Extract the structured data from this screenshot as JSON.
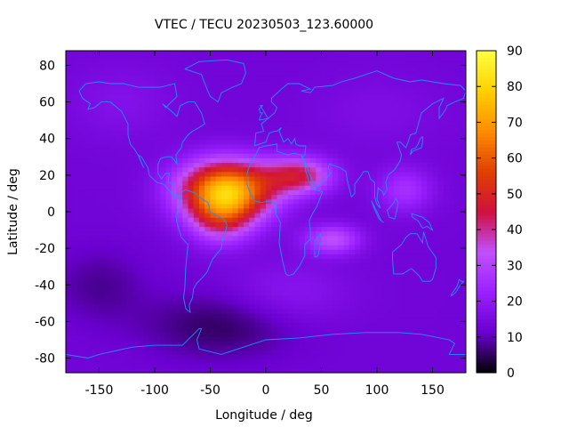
{
  "chart_data": {
    "type": "heatmap",
    "title": "VTEC / TECU 20230503_123.60000",
    "xlabel": "Longitude / deg",
    "ylabel": "Latitude / deg",
    "xlim": [
      -180,
      180
    ],
    "ylim": [
      -88,
      88
    ],
    "x_ticks": [
      "-150",
      "-100",
      "-50",
      "0",
      "50",
      "100",
      "150"
    ],
    "y_ticks": [
      "80",
      "60",
      "40",
      "20",
      "0",
      "-20",
      "-40",
      "-60",
      "-80"
    ],
    "colorbar": {
      "min": 0,
      "max": 90,
      "ticks": [
        "0",
        "10",
        "20",
        "30",
        "40",
        "50",
        "60",
        "70",
        "80",
        "90"
      ],
      "stops": [
        "#000000",
        "#6a00d0",
        "#9a20ff",
        "#c050ff",
        "#d01040",
        "#e04000",
        "#ff8c00",
        "#ffd000",
        "#ffff40"
      ]
    },
    "grid_step_deg": {
      "lon": 5,
      "lat": 2.5
    },
    "background_tec": 13,
    "anomalies": [
      {
        "lon": -35,
        "lat": 12,
        "slon": 42,
        "slat": 16,
        "amp": 62
      },
      {
        "lon": -40,
        "lat": -4,
        "slon": 28,
        "slat": 14,
        "amp": 22
      },
      {
        "lon": 30,
        "lat": 20,
        "slon": 30,
        "slat": 10,
        "amp": 30
      },
      {
        "lon": 60,
        "lat": -15,
        "slon": 25,
        "slat": 8,
        "amp": 20
      },
      {
        "lon": 125,
        "lat": 12,
        "slon": 25,
        "slat": 12,
        "amp": 13
      },
      {
        "lon": 20,
        "lat": -45,
        "slon": 55,
        "slat": 18,
        "amp": 6
      },
      {
        "lon": -40,
        "lat": -62,
        "slon": 70,
        "slat": 18,
        "amp": -8
      },
      {
        "lon": -150,
        "lat": -40,
        "slon": 40,
        "slat": 20,
        "amp": -5
      },
      {
        "lon": -130,
        "lat": 60,
        "slon": 50,
        "slat": 20,
        "amp": 4
      },
      {
        "lon": 100,
        "lat": 55,
        "slon": 60,
        "slat": 20,
        "amp": 3
      }
    ],
    "coastlines": [
      [
        [
          -168,
          66
        ],
        [
          -162,
          70
        ],
        [
          -150,
          71
        ],
        [
          -140,
          70
        ],
        [
          -128,
          70
        ],
        [
          -115,
          68
        ],
        [
          -95,
          68
        ],
        [
          -82,
          70
        ],
        [
          -80,
          63
        ],
        [
          -90,
          57
        ],
        [
          -93,
          59
        ],
        [
          -85,
          55
        ],
        [
          -80,
          52
        ],
        [
          -77,
          58
        ],
        [
          -70,
          60
        ],
        [
          -64,
          60
        ],
        [
          -58,
          54
        ],
        [
          -55,
          48
        ],
        [
          -60,
          46
        ],
        [
          -66,
          44
        ],
        [
          -70,
          42
        ],
        [
          -75,
          38
        ],
        [
          -76,
          35
        ],
        [
          -81,
          31
        ],
        [
          -80,
          26
        ],
        [
          -82,
          28
        ],
        [
          -85,
          30
        ],
        [
          -90,
          30
        ],
        [
          -95,
          29
        ],
        [
          -97,
          26
        ],
        [
          -97,
          21
        ],
        [
          -94,
          18
        ],
        [
          -90,
          21
        ],
        [
          -87,
          21
        ],
        [
          -88,
          16
        ],
        [
          -83,
          15
        ],
        [
          -83,
          10
        ],
        [
          -79,
          9
        ],
        [
          -80,
          7
        ],
        [
          -86,
          11
        ],
        [
          -92,
          15
        ],
        [
          -98,
          16
        ],
        [
          -105,
          20
        ],
        [
          -106,
          24
        ],
        [
          -112,
          30
        ],
        [
          -115,
          31
        ],
        [
          -110,
          24
        ],
        [
          -114,
          30
        ],
        [
          -118,
          34
        ],
        [
          -122,
          37
        ],
        [
          -124,
          42
        ],
        [
          -124,
          48
        ],
        [
          -130,
          55
        ],
        [
          -140,
          60
        ],
        [
          -148,
          60
        ],
        [
          -154,
          57
        ],
        [
          -160,
          56
        ],
        [
          -158,
          59
        ],
        [
          -165,
          62
        ],
        [
          -168,
          66
        ]
      ],
      [
        [
          -73,
          78
        ],
        [
          -60,
          82
        ],
        [
          -35,
          83
        ],
        [
          -20,
          81
        ],
        [
          -18,
          76
        ],
        [
          -22,
          70
        ],
        [
          -30,
          68
        ],
        [
          -40,
          65
        ],
        [
          -43,
          60
        ],
        [
          -50,
          63
        ],
        [
          -53,
          67
        ],
        [
          -58,
          75
        ],
        [
          -73,
          78
        ]
      ],
      [
        [
          -77,
          9
        ],
        [
          -75,
          11
        ],
        [
          -72,
          12
        ],
        [
          -63,
          10
        ],
        [
          -60,
          8
        ],
        [
          -52,
          5
        ],
        [
          -50,
          0
        ],
        [
          -45,
          -2
        ],
        [
          -38,
          -4
        ],
        [
          -35,
          -7
        ],
        [
          -36,
          -10
        ],
        [
          -39,
          -15
        ],
        [
          -40,
          -20
        ],
        [
          -44,
          -23
        ],
        [
          -48,
          -26
        ],
        [
          -53,
          -33
        ],
        [
          -57,
          -36
        ],
        [
          -62,
          -39
        ],
        [
          -65,
          -42
        ],
        [
          -66,
          -47
        ],
        [
          -69,
          -51
        ],
        [
          -68,
          -55
        ],
        [
          -72,
          -53
        ],
        [
          -74,
          -47
        ],
        [
          -73,
          -42
        ],
        [
          -72,
          -30
        ],
        [
          -70,
          -18
        ],
        [
          -76,
          -14
        ],
        [
          -80,
          -6
        ],
        [
          -81,
          -2
        ],
        [
          -78,
          2
        ],
        [
          -77,
          9
        ]
      ],
      [
        [
          -10,
          36
        ],
        [
          -9,
          43
        ],
        [
          -2,
          44
        ],
        [
          -4,
          48
        ],
        [
          2,
          51
        ],
        [
          8,
          54
        ],
        [
          10,
          57
        ],
        [
          5,
          60
        ],
        [
          5,
          62
        ],
        [
          14,
          67
        ],
        [
          20,
          70
        ],
        [
          30,
          70
        ],
        [
          40,
          67
        ],
        [
          32,
          66
        ],
        [
          40,
          65
        ],
        [
          44,
          68
        ],
        [
          60,
          69
        ],
        [
          68,
          71
        ],
        [
          80,
          73
        ],
        [
          100,
          77
        ],
        [
          115,
          73
        ],
        [
          130,
          71
        ],
        [
          140,
          72
        ],
        [
          160,
          70
        ],
        [
          175,
          69
        ],
        [
          180,
          66
        ],
        [
          178,
          62
        ],
        [
          170,
          60
        ],
        [
          163,
          58
        ],
        [
          162,
          56
        ],
        [
          156,
          51
        ],
        [
          156,
          57
        ],
        [
          160,
          62
        ],
        [
          150,
          59
        ],
        [
          140,
          54
        ],
        [
          135,
          43
        ],
        [
          130,
          42
        ],
        [
          128,
          38
        ],
        [
          126,
          35
        ],
        [
          121,
          38
        ],
        [
          118,
          38
        ],
        [
          122,
          31
        ],
        [
          121,
          28
        ],
        [
          116,
          23
        ],
        [
          110,
          20
        ],
        [
          108,
          16
        ],
        [
          109,
          12
        ],
        [
          106,
          9
        ],
        [
          105,
          11
        ],
        [
          101,
          13
        ],
        [
          100,
          7
        ],
        [
          103,
          2
        ],
        [
          100,
          4
        ],
        [
          98,
          8
        ],
        [
          98,
          16
        ],
        [
          94,
          18
        ],
        [
          92,
          22
        ],
        [
          88,
          22
        ],
        [
          86,
          20
        ],
        [
          80,
          15
        ],
        [
          80,
          10
        ],
        [
          77,
          8
        ],
        [
          73,
          18
        ],
        [
          72,
          22
        ],
        [
          67,
          24
        ],
        [
          62,
          25
        ],
        [
          57,
          26
        ],
        [
          56,
          24
        ],
        [
          58,
          21
        ],
        [
          53,
          17
        ],
        [
          45,
          13
        ],
        [
          43,
          15
        ],
        [
          39,
          21
        ],
        [
          35,
          28
        ],
        [
          33,
          30
        ],
        [
          35,
          31
        ],
        [
          36,
          36
        ],
        [
          30,
          36
        ],
        [
          27,
          37
        ],
        [
          26,
          40
        ],
        [
          23,
          37
        ],
        [
          20,
          40
        ],
        [
          16,
          38
        ],
        [
          12,
          44
        ],
        [
          14,
          46
        ],
        [
          10,
          44
        ],
        [
          8,
          44
        ],
        [
          3,
          43
        ],
        [
          0,
          38
        ],
        [
          -6,
          37
        ],
        [
          -10,
          36
        ]
      ],
      [
        [
          -17,
          21
        ],
        [
          -17,
          15
        ],
        [
          -14,
          10
        ],
        [
          -10,
          6
        ],
        [
          -4,
          5
        ],
        [
          4,
          6
        ],
        [
          9,
          4
        ],
        [
          9,
          -1
        ],
        [
          13,
          -6
        ],
        [
          12,
          -17
        ],
        [
          15,
          -27
        ],
        [
          18,
          -34
        ],
        [
          20,
          -35
        ],
        [
          25,
          -34
        ],
        [
          31,
          -29
        ],
        [
          35,
          -24
        ],
        [
          35,
          -18
        ],
        [
          40,
          -15
        ],
        [
          40,
          -10
        ],
        [
          39,
          -5
        ],
        [
          42,
          -1
        ],
        [
          46,
          3
        ],
        [
          51,
          11
        ],
        [
          43,
          12
        ],
        [
          39,
          16
        ],
        [
          36,
          22
        ],
        [
          34,
          28
        ],
        [
          32,
          31
        ],
        [
          25,
          32
        ],
        [
          20,
          31
        ],
        [
          15,
          32
        ],
        [
          10,
          33
        ],
        [
          10,
          37
        ],
        [
          0,
          36
        ],
        [
          -6,
          35
        ],
        [
          -10,
          30
        ],
        [
          -13,
          28
        ],
        [
          -17,
          21
        ]
      ],
      [
        [
          44,
          -25
        ],
        [
          47,
          -24
        ],
        [
          50,
          -15
        ],
        [
          49,
          -12
        ],
        [
          44,
          -16
        ],
        [
          44,
          -25
        ]
      ],
      [
        [
          114,
          -22
        ],
        [
          114,
          -26
        ],
        [
          115,
          -34
        ],
        [
          123,
          -34
        ],
        [
          131,
          -31
        ],
        [
          138,
          -35
        ],
        [
          141,
          -38
        ],
        [
          148,
          -38
        ],
        [
          150,
          -37
        ],
        [
          153,
          -31
        ],
        [
          153,
          -25
        ],
        [
          146,
          -19
        ],
        [
          142,
          -11
        ],
        [
          141,
          -17
        ],
        [
          136,
          -12
        ],
        [
          130,
          -12
        ],
        [
          126,
          -14
        ],
        [
          122,
          -18
        ],
        [
          114,
          -22
        ]
      ],
      [
        [
          -180,
          -78
        ],
        [
          -160,
          -80
        ],
        [
          -150,
          -78
        ],
        [
          -120,
          -74
        ],
        [
          -100,
          -73
        ],
        [
          -75,
          -73
        ],
        [
          -60,
          -64
        ],
        [
          -58,
          -64
        ],
        [
          -62,
          -70
        ],
        [
          -60,
          -75
        ],
        [
          -40,
          -78
        ],
        [
          -20,
          -74
        ],
        [
          0,
          -70
        ],
        [
          30,
          -69
        ],
        [
          60,
          -67
        ],
        [
          90,
          -66
        ],
        [
          120,
          -66
        ],
        [
          140,
          -67
        ],
        [
          165,
          -70
        ],
        [
          170,
          -72
        ],
        [
          165,
          -78
        ],
        [
          180,
          -78
        ]
      ],
      [
        [
          -6,
          50
        ],
        [
          2,
          51
        ],
        [
          0,
          53
        ],
        [
          -3,
          56
        ],
        [
          -5,
          58
        ],
        [
          -3,
          58
        ],
        [
          -6,
          56
        ],
        [
          -5,
          54
        ],
        [
          -3,
          54
        ],
        [
          -5,
          52
        ],
        [
          -6,
          50
        ]
      ],
      [
        [
          130,
          31
        ],
        [
          132,
          33
        ],
        [
          136,
          34
        ],
        [
          140,
          35
        ],
        [
          141,
          38
        ],
        [
          141,
          41
        ],
        [
          139,
          40
        ],
        [
          137,
          37
        ],
        [
          135,
          35
        ],
        [
          131,
          34
        ],
        [
          130,
          31
        ]
      ],
      [
        [
          95,
          6
        ],
        [
          100,
          0
        ],
        [
          104,
          -5
        ],
        [
          106,
          -6
        ],
        [
          102,
          -4
        ],
        [
          98,
          1
        ],
        [
          95,
          6
        ]
      ],
      [
        [
          131,
          -1
        ],
        [
          136,
          -2
        ],
        [
          141,
          -3
        ],
        [
          147,
          -6
        ],
        [
          150,
          -10
        ],
        [
          145,
          -8
        ],
        [
          141,
          -9
        ],
        [
          137,
          -5
        ],
        [
          132,
          -3
        ],
        [
          131,
          -1
        ]
      ],
      [
        [
          110,
          1
        ],
        [
          114,
          4
        ],
        [
          117,
          7
        ],
        [
          119,
          5
        ],
        [
          118,
          1
        ],
        [
          116,
          -4
        ],
        [
          111,
          -3
        ],
        [
          109,
          1
        ],
        [
          110,
          1
        ]
      ],
      [
        [
          167,
          -45
        ],
        [
          172,
          -41
        ],
        [
          174,
          -37
        ],
        [
          176,
          -38
        ],
        [
          178,
          -38
        ],
        [
          174,
          -41
        ],
        [
          171,
          -44
        ],
        [
          167,
          -46
        ],
        [
          167,
          -45
        ]
      ]
    ]
  }
}
